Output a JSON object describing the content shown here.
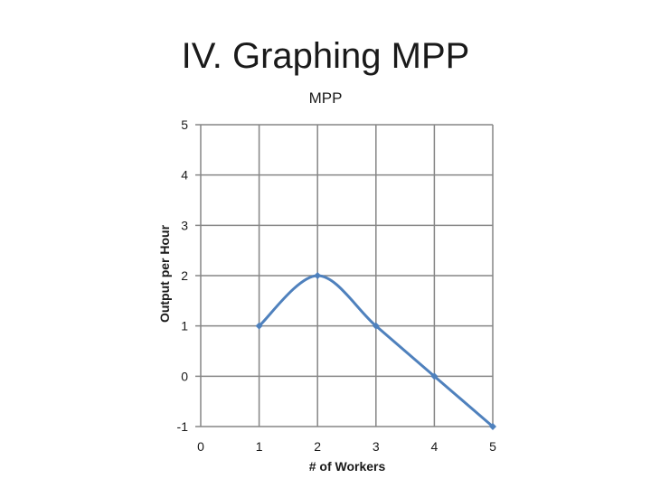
{
  "slide": {
    "title": "IV. Graphing MPP"
  },
  "chart_data": {
    "type": "line",
    "title": "MPP",
    "xlabel": "# of Workers",
    "ylabel": "Output per Hour",
    "x_ticks": [
      "0",
      "1",
      "2",
      "3",
      "4",
      "5"
    ],
    "y_ticks": [
      "5",
      "4",
      "3",
      "2",
      "1",
      "0",
      "-1"
    ],
    "xlim": [
      0,
      5
    ],
    "ylim": [
      -1,
      5
    ],
    "grid": true,
    "smooth": true,
    "series": [
      {
        "x": [
          1,
          2,
          3,
          4,
          5
        ],
        "y": [
          1,
          2,
          1,
          0,
          -1
        ]
      }
    ],
    "colors": {
      "line": "#4f81bd",
      "grid": "#868686",
      "marker": "#4f81bd"
    }
  }
}
